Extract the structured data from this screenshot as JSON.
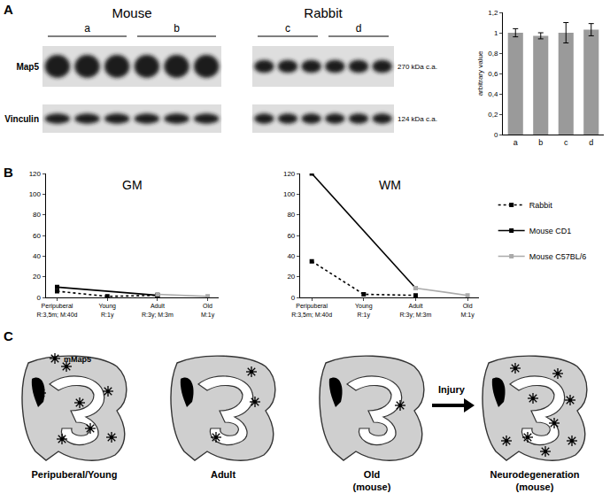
{
  "panels": [
    "A",
    "B",
    "C"
  ],
  "blots": {
    "panels": [
      {
        "title": "Mouse",
        "groups": [
          "a",
          "b"
        ]
      },
      {
        "title": "Rabbit",
        "groups": [
          "c",
          "d"
        ]
      }
    ],
    "rows": [
      "Map5",
      "Vinculin"
    ],
    "sizes": [
      "270 kDa c.a.",
      "124 kDa c.a."
    ]
  },
  "chart_data": [
    {
      "type": "bar",
      "categories": [
        "a",
        "b",
        "c",
        "d"
      ],
      "values": [
        1,
        0.97,
        1,
        1.03
      ],
      "errors": [
        0.04,
        0.03,
        0.1,
        0.06
      ],
      "color": "#9a9a9a",
      "y_label": "arbitrary value",
      "ylim": [
        0,
        1.2
      ],
      "yticks": [
        0,
        {
          "value": 0.2,
          "label": "0,2"
        },
        {
          "value": 0.4,
          "label": "0,4"
        },
        {
          "value": 0.6,
          "label": "0,6"
        },
        {
          "value": 0.8,
          "label": "0,8"
        },
        1,
        {
          "value": 1.2,
          "label": "1,2"
        }
      ],
      "grid": false
    },
    {
      "type": "line",
      "title": "GM",
      "categories": [
        "Peripuberal\nR:3,5m; M:40d",
        "Young\nR:1y",
        "Adult\nR:3y; M:3m",
        "Old\nM:1y"
      ],
      "series": [
        {
          "name": "Rabbit",
          "color": "#000000",
          "line_style": "dotted",
          "marker": "square",
          "values": [
            6,
            1,
            2,
            null
          ]
        },
        {
          "name": "Mouse CD1",
          "color": "#000000",
          "line_style": "solid",
          "marker": "square",
          "values": [
            10,
            null,
            2,
            null
          ]
        },
        {
          "name": "Mouse C57BL/6",
          "color": "#aaaaaa",
          "line_style": "solid",
          "marker": "square",
          "values": [
            null,
            null,
            3,
            1
          ]
        }
      ],
      "ylim": [
        0,
        120
      ],
      "yticks": [
        0,
        20,
        40,
        60,
        80,
        100,
        120
      ],
      "grid": false
    },
    {
      "type": "line",
      "title": "WM",
      "categories": [
        "Peripuberal\nR:3,5m; M:40d",
        "Young\nR:1y",
        "Adult\nR:3y; M:3m",
        "Old\nM:1y"
      ],
      "series": [
        {
          "name": "Rabbit",
          "color": "#000000",
          "line_style": "dotted",
          "marker": "square",
          "values": [
            35,
            3,
            2,
            null
          ]
        },
        {
          "name": "Mouse CD1",
          "color": "#000000",
          "line_style": "solid",
          "marker": "square",
          "values": [
            120,
            null,
            9,
            null
          ]
        },
        {
          "name": "Mouse C57BL/6",
          "color": "#aaaaaa",
          "line_style": "solid",
          "marker": "square",
          "values": [
            null,
            null,
            9,
            2
          ]
        }
      ],
      "ylim": [
        0,
        120
      ],
      "yticks": [
        0,
        20,
        40,
        60,
        80,
        100,
        120
      ],
      "grid": false,
      "legend": "right"
    }
  ],
  "diagram": {
    "marker_label": "mMap5",
    "stages": [
      "Peripuberal/Young",
      "Adult",
      "Old\n(mouse)",
      "Neurodegeneration\n(mouse)"
    ],
    "arrow_label": "Injury"
  }
}
